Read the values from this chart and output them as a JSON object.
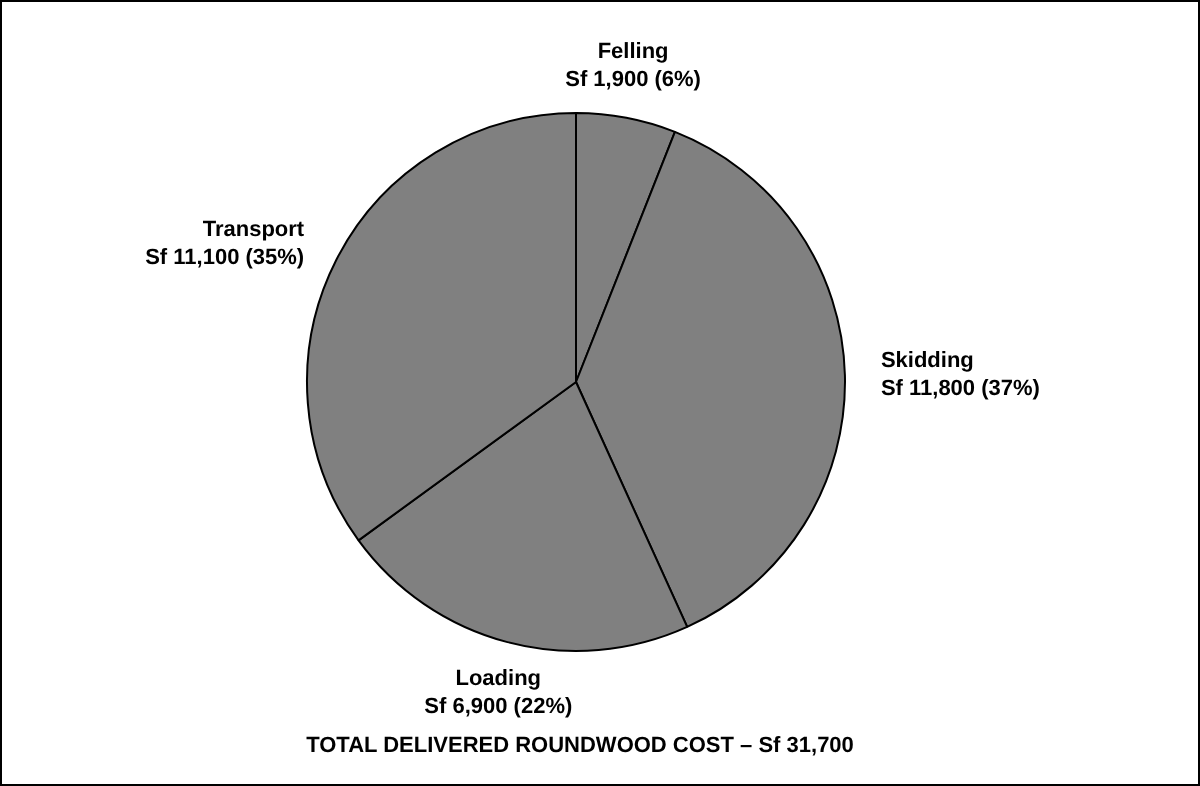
{
  "chart_data": {
    "type": "pie",
    "title": "TOTAL DELIVERED ROUNDWOOD COST – Sf 31,700",
    "categories": [
      "Felling",
      "Skidding",
      "Loading",
      "Transport"
    ],
    "values": [
      1900,
      11800,
      6900,
      11100
    ],
    "value_labels": [
      "Sf 1,900 (6%)",
      "Sf 11,800 (37%)",
      "Sf 6,900 (22%)",
      "Sf 11,100 (35%)"
    ],
    "colors": [
      "#808080",
      "#808080",
      "#808080",
      "#808080"
    ],
    "legend": false
  }
}
